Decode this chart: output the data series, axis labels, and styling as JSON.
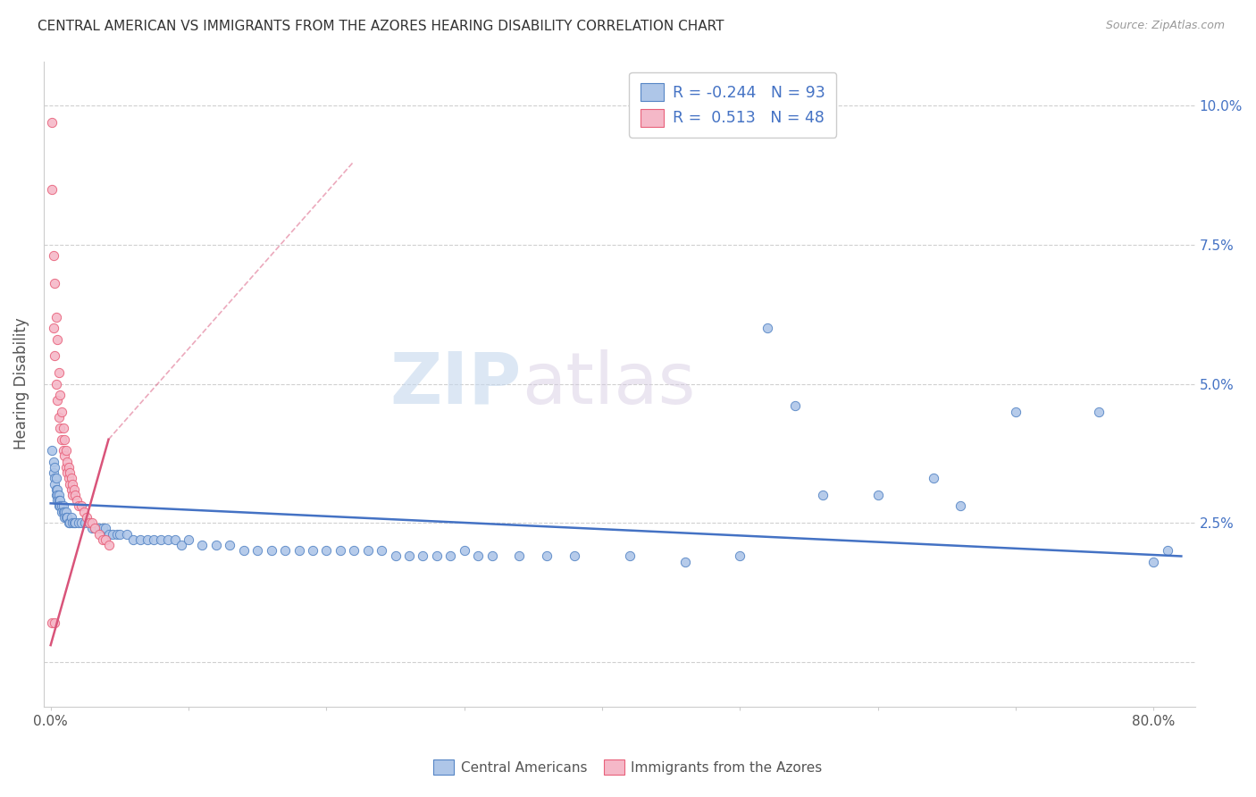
{
  "title": "CENTRAL AMERICAN VS IMMIGRANTS FROM THE AZORES HEARING DISABILITY CORRELATION CHART",
  "source": "Source: ZipAtlas.com",
  "ylabel": "Hearing Disability",
  "watermark_zip": "ZIP",
  "watermark_atlas": "atlas",
  "blue_R": -0.244,
  "blue_N": 93,
  "pink_R": 0.513,
  "pink_N": 48,
  "blue_color": "#aec6e8",
  "pink_color": "#f5b8c8",
  "blue_edge_color": "#5585c5",
  "pink_edge_color": "#e8607a",
  "blue_line_color": "#4472c4",
  "pink_line_color": "#d9547a",
  "xlim": [
    -0.005,
    0.83
  ],
  "ylim": [
    -0.008,
    0.108
  ],
  "legend_label_blue": "Central Americans",
  "legend_label_pink": "Immigrants from the Azores",
  "blue_scatter": [
    [
      0.001,
      0.038
    ],
    [
      0.002,
      0.036
    ],
    [
      0.002,
      0.034
    ],
    [
      0.003,
      0.035
    ],
    [
      0.003,
      0.033
    ],
    [
      0.003,
      0.032
    ],
    [
      0.004,
      0.033
    ],
    [
      0.004,
      0.031
    ],
    [
      0.004,
      0.03
    ],
    [
      0.005,
      0.031
    ],
    [
      0.005,
      0.03
    ],
    [
      0.005,
      0.029
    ],
    [
      0.006,
      0.03
    ],
    [
      0.006,
      0.029
    ],
    [
      0.006,
      0.028
    ],
    [
      0.007,
      0.029
    ],
    [
      0.007,
      0.028
    ],
    [
      0.008,
      0.028
    ],
    [
      0.008,
      0.027
    ],
    [
      0.009,
      0.028
    ],
    [
      0.009,
      0.027
    ],
    [
      0.01,
      0.027
    ],
    [
      0.01,
      0.026
    ],
    [
      0.011,
      0.027
    ],
    [
      0.011,
      0.026
    ],
    [
      0.012,
      0.026
    ],
    [
      0.013,
      0.025
    ],
    [
      0.014,
      0.025
    ],
    [
      0.015,
      0.026
    ],
    [
      0.016,
      0.025
    ],
    [
      0.017,
      0.025
    ],
    [
      0.018,
      0.025
    ],
    [
      0.02,
      0.025
    ],
    [
      0.022,
      0.025
    ],
    [
      0.025,
      0.025
    ],
    [
      0.028,
      0.025
    ],
    [
      0.03,
      0.024
    ],
    [
      0.032,
      0.024
    ],
    [
      0.035,
      0.024
    ],
    [
      0.038,
      0.024
    ],
    [
      0.04,
      0.024
    ],
    [
      0.042,
      0.023
    ],
    [
      0.045,
      0.023
    ],
    [
      0.048,
      0.023
    ],
    [
      0.05,
      0.023
    ],
    [
      0.055,
      0.023
    ],
    [
      0.06,
      0.022
    ],
    [
      0.065,
      0.022
    ],
    [
      0.07,
      0.022
    ],
    [
      0.075,
      0.022
    ],
    [
      0.08,
      0.022
    ],
    [
      0.085,
      0.022
    ],
    [
      0.09,
      0.022
    ],
    [
      0.095,
      0.021
    ],
    [
      0.1,
      0.022
    ],
    [
      0.11,
      0.021
    ],
    [
      0.12,
      0.021
    ],
    [
      0.13,
      0.021
    ],
    [
      0.14,
      0.02
    ],
    [
      0.15,
      0.02
    ],
    [
      0.16,
      0.02
    ],
    [
      0.17,
      0.02
    ],
    [
      0.18,
      0.02
    ],
    [
      0.19,
      0.02
    ],
    [
      0.2,
      0.02
    ],
    [
      0.21,
      0.02
    ],
    [
      0.22,
      0.02
    ],
    [
      0.23,
      0.02
    ],
    [
      0.24,
      0.02
    ],
    [
      0.25,
      0.019
    ],
    [
      0.26,
      0.019
    ],
    [
      0.27,
      0.019
    ],
    [
      0.28,
      0.019
    ],
    [
      0.29,
      0.019
    ],
    [
      0.3,
      0.02
    ],
    [
      0.31,
      0.019
    ],
    [
      0.32,
      0.019
    ],
    [
      0.34,
      0.019
    ],
    [
      0.36,
      0.019
    ],
    [
      0.38,
      0.019
    ],
    [
      0.42,
      0.019
    ],
    [
      0.46,
      0.018
    ],
    [
      0.5,
      0.019
    ],
    [
      0.52,
      0.06
    ],
    [
      0.54,
      0.046
    ],
    [
      0.56,
      0.03
    ],
    [
      0.6,
      0.03
    ],
    [
      0.64,
      0.033
    ],
    [
      0.66,
      0.028
    ],
    [
      0.7,
      0.045
    ],
    [
      0.76,
      0.045
    ],
    [
      0.8,
      0.018
    ],
    [
      0.81,
      0.02
    ]
  ],
  "pink_scatter": [
    [
      0.001,
      0.097
    ],
    [
      0.001,
      0.085
    ],
    [
      0.002,
      0.073
    ],
    [
      0.002,
      0.06
    ],
    [
      0.003,
      0.068
    ],
    [
      0.003,
      0.055
    ],
    [
      0.004,
      0.062
    ],
    [
      0.004,
      0.05
    ],
    [
      0.005,
      0.058
    ],
    [
      0.005,
      0.047
    ],
    [
      0.006,
      0.052
    ],
    [
      0.006,
      0.044
    ],
    [
      0.007,
      0.048
    ],
    [
      0.007,
      0.042
    ],
    [
      0.008,
      0.045
    ],
    [
      0.008,
      0.04
    ],
    [
      0.009,
      0.042
    ],
    [
      0.009,
      0.038
    ],
    [
      0.01,
      0.04
    ],
    [
      0.01,
      0.037
    ],
    [
      0.011,
      0.038
    ],
    [
      0.011,
      0.035
    ],
    [
      0.012,
      0.036
    ],
    [
      0.012,
      0.034
    ],
    [
      0.013,
      0.035
    ],
    [
      0.013,
      0.033
    ],
    [
      0.014,
      0.034
    ],
    [
      0.014,
      0.032
    ],
    [
      0.015,
      0.033
    ],
    [
      0.015,
      0.031
    ],
    [
      0.016,
      0.032
    ],
    [
      0.016,
      0.03
    ],
    [
      0.017,
      0.031
    ],
    [
      0.018,
      0.03
    ],
    [
      0.019,
      0.029
    ],
    [
      0.02,
      0.028
    ],
    [
      0.022,
      0.028
    ],
    [
      0.024,
      0.027
    ],
    [
      0.026,
      0.026
    ],
    [
      0.028,
      0.025
    ],
    [
      0.03,
      0.025
    ],
    [
      0.032,
      0.024
    ],
    [
      0.035,
      0.023
    ],
    [
      0.038,
      0.022
    ],
    [
      0.04,
      0.022
    ],
    [
      0.042,
      0.021
    ],
    [
      0.001,
      0.007
    ],
    [
      0.003,
      0.007
    ]
  ],
  "blue_trend": [
    0.0,
    0.82,
    0.0285,
    0.019
  ],
  "pink_trend": [
    0.0,
    0.042,
    0.003,
    0.04
  ],
  "pink_dashed": [
    0.042,
    0.22,
    0.04,
    0.09
  ]
}
